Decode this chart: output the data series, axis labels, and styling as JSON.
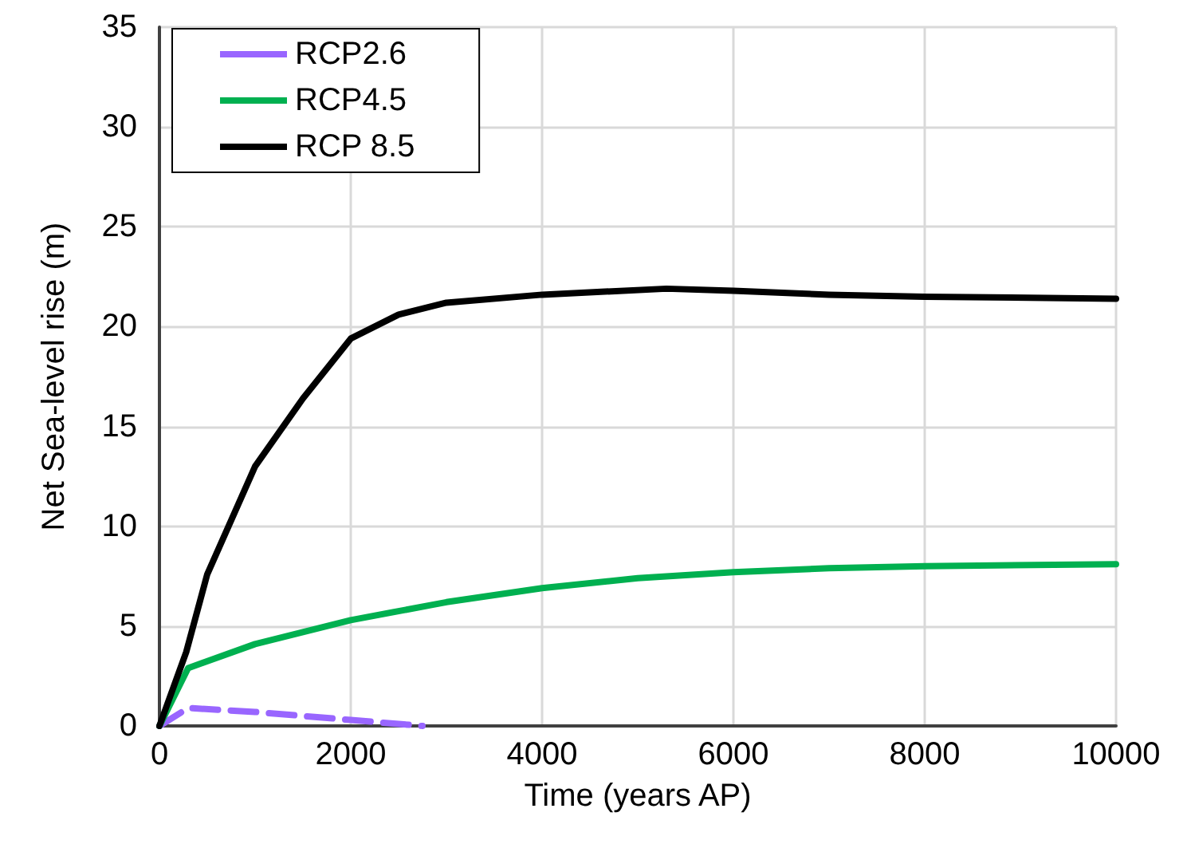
{
  "chart_data": {
    "type": "line",
    "xlabel": "Time (years AP)",
    "ylabel": "Net Sea-level rise (m)",
    "xlim": [
      0,
      10000
    ],
    "xticks": [
      0,
      2000,
      4000,
      6000,
      8000,
      10000
    ],
    "ylim": [
      0,
      35
    ],
    "yticks": [
      0,
      5,
      10,
      15,
      20,
      25,
      30,
      35
    ],
    "grid": true,
    "legend": "top left",
    "marker": "none",
    "series": [
      {
        "name": "RCP2.6",
        "color": "#9966ff",
        "line_style": "dashed",
        "x": [
          0,
          300,
          1000,
          2000,
          2750
        ],
        "values": [
          0,
          0.9,
          0.7,
          0.3,
          0
        ]
      },
      {
        "name": "RCP4.5",
        "color": "#00b050",
        "x": [
          0,
          300,
          1000,
          2000,
          3000,
          4000,
          5000,
          6000,
          7000,
          8000,
          10000
        ],
        "values": [
          0,
          2.9,
          4.1,
          5.3,
          6.2,
          6.9,
          7.4,
          7.7,
          7.9,
          8.0,
          8.1
        ]
      },
      {
        "name": "RCP 8.5",
        "color": "#000000",
        "x": [
          0,
          280,
          500,
          1000,
          1500,
          2000,
          2500,
          3000,
          4000,
          5300,
          6000,
          7000,
          8000,
          10000
        ],
        "values": [
          0,
          3.7,
          7.6,
          13,
          16.4,
          19.4,
          20.6,
          21.2,
          21.6,
          21.9,
          21.8,
          21.6,
          21.5,
          21.4
        ]
      }
    ]
  }
}
